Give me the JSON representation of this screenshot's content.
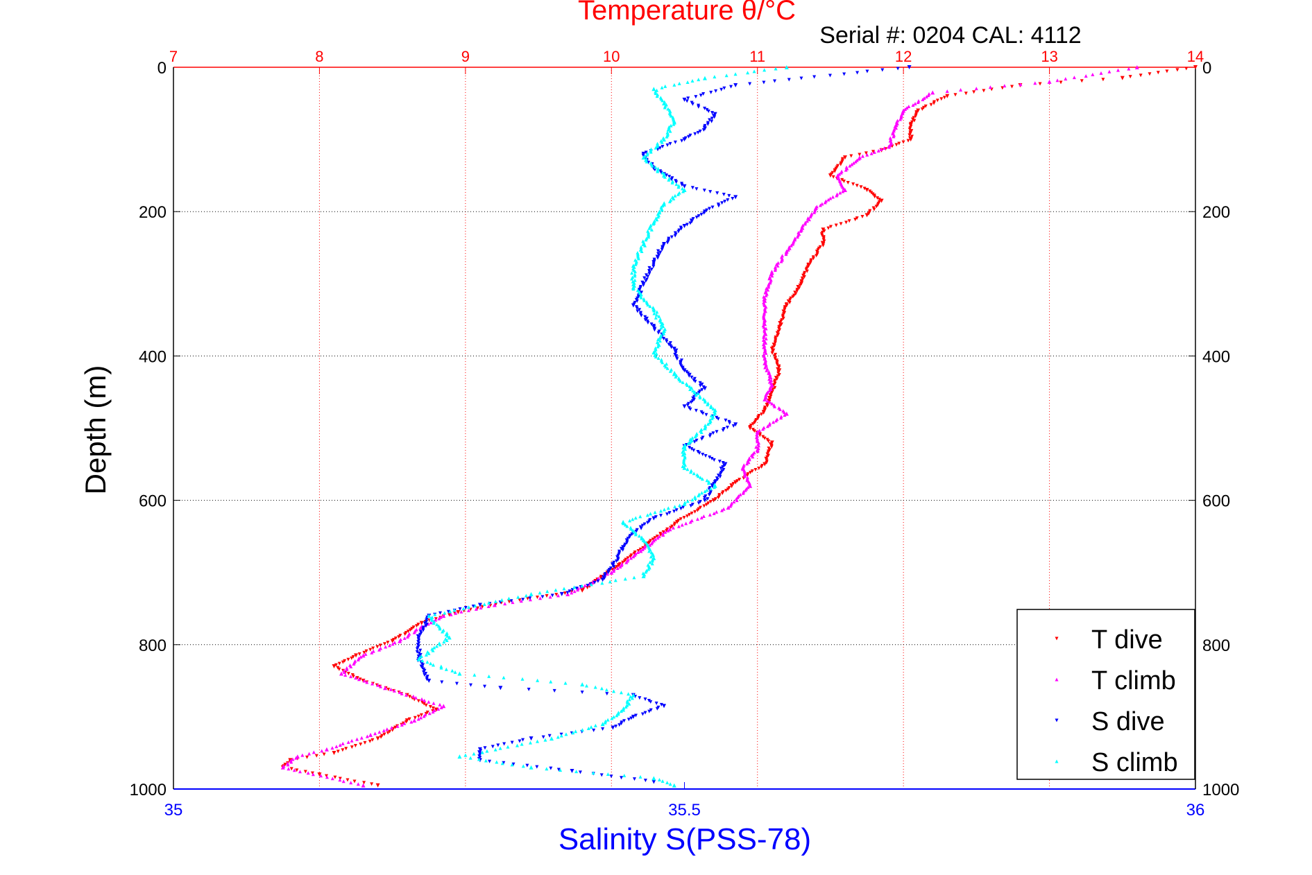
{
  "chart_data": {
    "type": "scatter",
    "title": "Temperature θ/°C",
    "subtitle": "Serial #: 0204  CAL: 4112",
    "ylabel": "Depth (m)",
    "xlabel": "Salinity S(PSS-78)",
    "x_top_label": "Temperature θ/°C",
    "x_bottom_label": "Salinity S(PSS-78)",
    "ylim": [
      0,
      1000
    ],
    "y_reversed": true,
    "temperature_xlim": [
      7,
      14
    ],
    "salinity_xlim": [
      35,
      36
    ],
    "grid": true,
    "legend_position": "bottom-right",
    "temperature_ticks": [
      "7",
      "8",
      "9",
      "10",
      "11",
      "12",
      "13",
      "14"
    ],
    "salinity_ticks": [
      "35",
      "35.5",
      "36"
    ],
    "depth_ticks": [
      "0",
      "200",
      "400",
      "600",
      "800",
      "1000"
    ],
    "colors": {
      "temperature_axis": "#ff0000",
      "salinity_axis": "#0000ff",
      "grid": "#000000"
    },
    "series": [
      {
        "name": "T dive",
        "axis": "temperature",
        "color": "#ff0000",
        "marker": "triangle-down",
        "points": [
          [
            14.0,
            0
          ],
          [
            13.5,
            15
          ],
          [
            12.8,
            25
          ],
          [
            12.3,
            40
          ],
          [
            12.1,
            60
          ],
          [
            12.05,
            80
          ],
          [
            12.05,
            100
          ],
          [
            11.85,
            115
          ],
          [
            11.6,
            125
          ],
          [
            11.5,
            150
          ],
          [
            11.75,
            170
          ],
          [
            11.85,
            185
          ],
          [
            11.75,
            205
          ],
          [
            11.45,
            225
          ],
          [
            11.45,
            245
          ],
          [
            11.35,
            275
          ],
          [
            11.3,
            300
          ],
          [
            11.2,
            330
          ],
          [
            11.15,
            360
          ],
          [
            11.1,
            390
          ],
          [
            11.15,
            420
          ],
          [
            11.1,
            450
          ],
          [
            11.05,
            475
          ],
          [
            10.95,
            500
          ],
          [
            11.1,
            520
          ],
          [
            11.05,
            550
          ],
          [
            10.85,
            575
          ],
          [
            10.7,
            600
          ],
          [
            10.45,
            630
          ],
          [
            10.25,
            660
          ],
          [
            10.05,
            690
          ],
          [
            9.8,
            725
          ],
          [
            9.3,
            740
          ],
          [
            8.95,
            755
          ],
          [
            8.7,
            770
          ],
          [
            8.5,
            795
          ],
          [
            8.25,
            815
          ],
          [
            8.1,
            830
          ],
          [
            8.3,
            850
          ],
          [
            8.6,
            870
          ],
          [
            8.8,
            890
          ],
          [
            8.6,
            905
          ],
          [
            8.4,
            930
          ],
          [
            8.1,
            950
          ],
          [
            7.8,
            960
          ],
          [
            7.75,
            970
          ],
          [
            8.0,
            980
          ],
          [
            8.4,
            995
          ]
        ]
      },
      {
        "name": "T climb",
        "axis": "temperature",
        "color": "#ff00ff",
        "marker": "triangle-up",
        "points": [
          [
            13.6,
            0
          ],
          [
            13.0,
            20
          ],
          [
            12.2,
            35
          ],
          [
            12.0,
            60
          ],
          [
            11.95,
            80
          ],
          [
            11.9,
            110
          ],
          [
            11.7,
            125
          ],
          [
            11.55,
            150
          ],
          [
            11.6,
            170
          ],
          [
            11.4,
            195
          ],
          [
            11.3,
            225
          ],
          [
            11.2,
            255
          ],
          [
            11.1,
            285
          ],
          [
            11.05,
            320
          ],
          [
            11.05,
            350
          ],
          [
            11.05,
            380
          ],
          [
            11.05,
            410
          ],
          [
            11.1,
            440
          ],
          [
            11.05,
            460
          ],
          [
            11.2,
            480
          ],
          [
            11.0,
            505
          ],
          [
            11.0,
            530
          ],
          [
            10.9,
            555
          ],
          [
            10.95,
            580
          ],
          [
            10.8,
            610
          ],
          [
            10.4,
            640
          ],
          [
            10.2,
            670
          ],
          [
            10.0,
            700
          ],
          [
            9.7,
            730
          ],
          [
            9.2,
            745
          ],
          [
            8.85,
            760
          ],
          [
            8.7,
            775
          ],
          [
            8.55,
            795
          ],
          [
            8.3,
            815
          ],
          [
            8.15,
            840
          ],
          [
            8.45,
            860
          ],
          [
            8.85,
            885
          ],
          [
            8.65,
            905
          ],
          [
            8.35,
            925
          ],
          [
            8.05,
            945
          ],
          [
            7.85,
            955
          ],
          [
            7.75,
            970
          ],
          [
            8.3,
            995
          ]
        ]
      },
      {
        "name": "S dive",
        "axis": "salinity",
        "color": "#0000ff",
        "marker": "triangle-down",
        "points": [
          [
            35.72,
            0
          ],
          [
            35.55,
            25
          ],
          [
            35.5,
            45
          ],
          [
            35.53,
            65
          ],
          [
            35.52,
            85
          ],
          [
            35.5,
            100
          ],
          [
            35.46,
            120
          ],
          [
            35.47,
            140
          ],
          [
            35.5,
            165
          ],
          [
            35.55,
            180
          ],
          [
            35.52,
            200
          ],
          [
            35.5,
            220
          ],
          [
            35.48,
            245
          ],
          [
            35.47,
            270
          ],
          [
            35.46,
            300
          ],
          [
            35.45,
            330
          ],
          [
            35.47,
            360
          ],
          [
            35.49,
            390
          ],
          [
            35.5,
            420
          ],
          [
            35.52,
            445
          ],
          [
            35.5,
            470
          ],
          [
            35.55,
            495
          ],
          [
            35.5,
            525
          ],
          [
            35.54,
            550
          ],
          [
            35.53,
            575
          ],
          [
            35.52,
            600
          ],
          [
            35.47,
            625
          ],
          [
            35.45,
            645
          ],
          [
            35.44,
            665
          ],
          [
            35.43,
            690
          ],
          [
            35.42,
            710
          ],
          [
            35.38,
            730
          ],
          [
            35.3,
            745
          ],
          [
            35.25,
            760
          ],
          [
            35.24,
            790
          ],
          [
            35.24,
            820
          ],
          [
            35.25,
            850
          ],
          [
            35.32,
            860
          ],
          [
            35.45,
            870
          ],
          [
            35.48,
            885
          ],
          [
            35.45,
            900
          ],
          [
            35.43,
            915
          ],
          [
            35.35,
            930
          ],
          [
            35.3,
            945
          ],
          [
            35.3,
            960
          ],
          [
            35.39,
            975
          ],
          [
            35.47,
            990
          ]
        ]
      },
      {
        "name": "S climb",
        "axis": "salinity",
        "color": "#00ffff",
        "marker": "triangle-up",
        "points": [
          [
            35.6,
            0
          ],
          [
            35.52,
            15
          ],
          [
            35.47,
            30
          ],
          [
            35.48,
            50
          ],
          [
            35.49,
            75
          ],
          [
            35.48,
            100
          ],
          [
            35.46,
            125
          ],
          [
            35.48,
            150
          ],
          [
            35.5,
            170
          ],
          [
            35.48,
            190
          ],
          [
            35.47,
            215
          ],
          [
            35.46,
            245
          ],
          [
            35.45,
            275
          ],
          [
            35.45,
            305
          ],
          [
            35.47,
            335
          ],
          [
            35.48,
            365
          ],
          [
            35.47,
            395
          ],
          [
            35.49,
            425
          ],
          [
            35.51,
            450
          ],
          [
            35.53,
            475
          ],
          [
            35.52,
            500
          ],
          [
            35.5,
            525
          ],
          [
            35.5,
            555
          ],
          [
            35.53,
            580
          ],
          [
            35.5,
            605
          ],
          [
            35.44,
            630
          ],
          [
            35.46,
            655
          ],
          [
            35.47,
            680
          ],
          [
            35.46,
            705
          ],
          [
            35.35,
            730
          ],
          [
            35.25,
            760
          ],
          [
            35.27,
            790
          ],
          [
            35.24,
            820
          ],
          [
            35.28,
            840
          ],
          [
            35.4,
            855
          ],
          [
            35.45,
            870
          ],
          [
            35.44,
            890
          ],
          [
            35.42,
            910
          ],
          [
            35.37,
            930
          ],
          [
            35.28,
            955
          ],
          [
            35.35,
            970
          ],
          [
            35.47,
            985
          ],
          [
            35.49,
            995
          ]
        ]
      }
    ]
  }
}
